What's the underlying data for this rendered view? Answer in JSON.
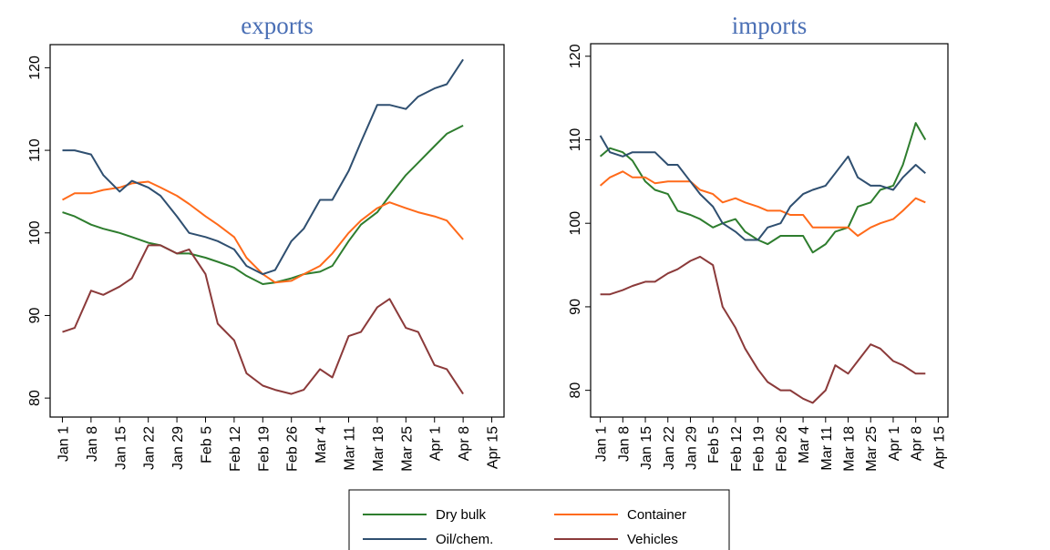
{
  "chart_data": [
    {
      "type": "line",
      "title": "exports",
      "x": [
        "Jan 1",
        "Jan 4",
        "Jan 8",
        "Jan 11",
        "Jan 15",
        "Jan 18",
        "Jan 22",
        "Jan 25",
        "Jan 29",
        "Feb 1",
        "Feb 5",
        "Feb 8",
        "Feb 12",
        "Feb 15",
        "Feb 19",
        "Feb 22",
        "Feb 26",
        "Feb 29",
        "Mar 4",
        "Mar 7",
        "Mar 11",
        "Mar 14",
        "Mar 18",
        "Mar 21",
        "Mar 25",
        "Mar 28",
        "Apr 1",
        "Apr 4",
        "Apr 8"
      ],
      "series": [
        {
          "name": "Dry bulk",
          "color": "#2e7d2e",
          "values": [
            102.5,
            102,
            101,
            100.5,
            100,
            99.5,
            98.8,
            98.5,
            97.5,
            97.5,
            97,
            96.5,
            95.8,
            94.8,
            93.8,
            94,
            94.5,
            95,
            95.3,
            96,
            99,
            101,
            102.5,
            104.5,
            107,
            108.5,
            110.5,
            112,
            113
          ]
        },
        {
          "name": "Container",
          "color": "#ff6a1a",
          "values": [
            104,
            104.8,
            104.8,
            105.2,
            105.5,
            106,
            106.2,
            105.5,
            104.5,
            103.5,
            102,
            101,
            99.5,
            97,
            95,
            94,
            94.2,
            95,
            96,
            97.5,
            100,
            101.5,
            103,
            103.7,
            103,
            102.5,
            102,
            101.5,
            99.2
          ]
        },
        {
          "name": "Oil/chem.",
          "color": "#2f4f70",
          "values": [
            110,
            110,
            109.5,
            107,
            105,
            106.3,
            105.5,
            104.5,
            102,
            100,
            99.5,
            99,
            98,
            96,
            95,
            95.5,
            99,
            100.5,
            104,
            104,
            107.5,
            111,
            115.5,
            115.5,
            115,
            116.5,
            117.5,
            118,
            121
          ]
        },
        {
          "name": "Vehicles",
          "color": "#8b3a3a",
          "values": [
            88,
            88.5,
            93,
            92.5,
            93.5,
            94.5,
            98.5,
            98.5,
            97.5,
            98,
            95,
            89,
            87,
            83,
            81.5,
            81,
            80.5,
            81,
            83.5,
            82.5,
            87.5,
            88,
            91,
            92,
            88.5,
            88,
            84,
            83.5,
            80.5
          ]
        }
      ],
      "xlim": [
        "Dec 29",
        "Apr 18"
      ],
      "xticks": [
        "Jan 1",
        "Jan 8",
        "Jan 15",
        "Jan 22",
        "Jan 29",
        "Feb 5",
        "Feb 12",
        "Feb 19",
        "Feb 26",
        "Mar 4",
        "Mar 11",
        "Mar 18",
        "Mar 25",
        "Apr 1",
        "Apr 8",
        "Apr 15"
      ],
      "ylim": [
        77.7,
        122.8
      ],
      "yticks": [
        80,
        90,
        100,
        110,
        120
      ]
    },
    {
      "type": "line",
      "title": "imports",
      "x": [
        "Jan 1",
        "Jan 4",
        "Jan 8",
        "Jan 11",
        "Jan 15",
        "Jan 18",
        "Jan 22",
        "Jan 25",
        "Jan 29",
        "Feb 1",
        "Feb 5",
        "Feb 8",
        "Feb 12",
        "Feb 15",
        "Feb 19",
        "Feb 22",
        "Feb 26",
        "Feb 29",
        "Mar 4",
        "Mar 7",
        "Mar 11",
        "Mar 14",
        "Mar 18",
        "Mar 21",
        "Mar 25",
        "Mar 28",
        "Apr 1",
        "Apr 4",
        "Apr 8",
        "Apr 11"
      ],
      "series": [
        {
          "name": "Dry bulk",
          "color": "#2e7d2e",
          "values": [
            108,
            109,
            108.5,
            107.5,
            105,
            104,
            103.5,
            101.5,
            101,
            100.5,
            99.5,
            100,
            100.5,
            99,
            98,
            97.5,
            98.5,
            98.5,
            98.5,
            96.5,
            97.5,
            99,
            99.5,
            102,
            102.5,
            104,
            104.5,
            107,
            112,
            110
          ]
        },
        {
          "name": "Container",
          "color": "#ff6a1a",
          "values": [
            104.5,
            105.5,
            106.2,
            105.5,
            105.5,
            104.8,
            105,
            105,
            105,
            104,
            103.5,
            102.5,
            103,
            102.5,
            102,
            101.5,
            101.5,
            101,
            101,
            99.5,
            99.5,
            99.5,
            99.5,
            98.5,
            99.5,
            100,
            100.5,
            101.5,
            103,
            102.5
          ]
        },
        {
          "name": "Oil/chem.",
          "color": "#2f4f70",
          "values": [
            110.5,
            108.5,
            108,
            108.5,
            108.5,
            108.5,
            107,
            107,
            105,
            103.5,
            102,
            100,
            99,
            98,
            98,
            99.5,
            100,
            102,
            103.5,
            104,
            104.5,
            106,
            108,
            105.5,
            104.5,
            104.5,
            104,
            105.5,
            107,
            106
          ]
        },
        {
          "name": "Vehicles",
          "color": "#8b3a3a",
          "values": [
            91.5,
            91.5,
            92,
            92.5,
            93,
            93,
            94,
            94.5,
            95.5,
            96,
            95,
            90,
            87.5,
            85,
            82.5,
            81,
            80,
            80,
            79,
            78.5,
            80,
            83,
            82,
            83.5,
            85.5,
            85,
            83.5,
            83,
            82,
            82
          ]
        }
      ],
      "xlim": [
        "Dec 29",
        "Apr 18"
      ],
      "xticks": [
        "Jan 1",
        "Jan 8",
        "Jan 15",
        "Jan 22",
        "Jan 29",
        "Feb 5",
        "Feb 12",
        "Feb 19",
        "Feb 26",
        "Mar 4",
        "Mar 11",
        "Mar 18",
        "Mar 25",
        "Apr 1",
        "Apr 8",
        "Apr 15"
      ],
      "ylim": [
        76.8,
        121.5
      ],
      "yticks": [
        80,
        90,
        100,
        110,
        120
      ]
    }
  ]
}
